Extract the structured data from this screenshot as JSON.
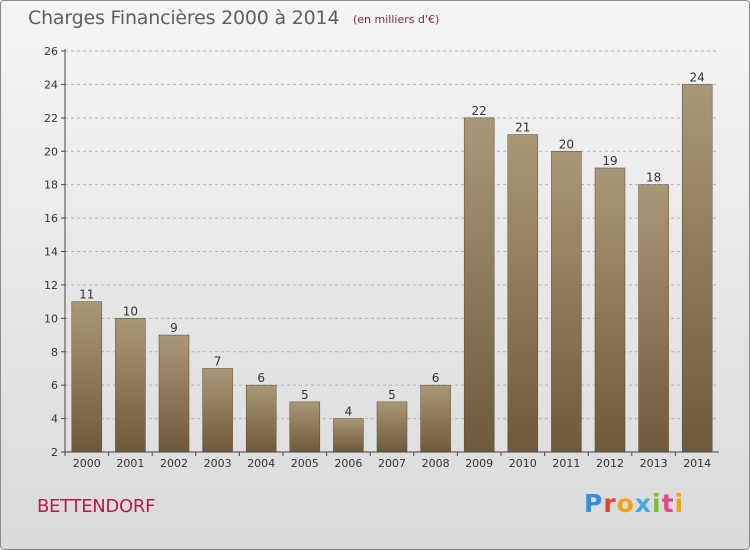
{
  "header": {
    "title": "Charges Financières 2000 à 2014",
    "unit": "(en milliers d'€)"
  },
  "footer": {
    "commune": "BETTENDORF",
    "logo": {
      "text": "Proxiti",
      "letter_colors": [
        "#3b8ed6",
        "#e0452f",
        "#f0a21b",
        "#49a9dc",
        "#7cbf2e",
        "#e24a8c",
        "#f0a21b"
      ]
    }
  },
  "colors": {
    "bar_top": "#a99877",
    "bar_bottom": "#6e5a3b",
    "bar_edge": "#5c4a30",
    "axis": "#444444",
    "grid": "#b5b5b5",
    "text": "#333333"
  },
  "chart_data": {
    "type": "bar",
    "title": "Charges Financières 2000 à 2014",
    "subtitle": "(en milliers d'€)",
    "categories": [
      "2000",
      "2001",
      "2002",
      "2003",
      "2004",
      "2005",
      "2006",
      "2007",
      "2008",
      "2009",
      "2010",
      "2011",
      "2012",
      "2013",
      "2014"
    ],
    "values": [
      11,
      10,
      9,
      7,
      6,
      5,
      4,
      5,
      6,
      22,
      21,
      20,
      19,
      18,
      24
    ],
    "ylim": [
      2,
      26
    ],
    "yticks": [
      2,
      4,
      6,
      8,
      10,
      12,
      14,
      16,
      18,
      20,
      22,
      24,
      26
    ],
    "grid": "horizontal dashed",
    "data_labels": true
  }
}
